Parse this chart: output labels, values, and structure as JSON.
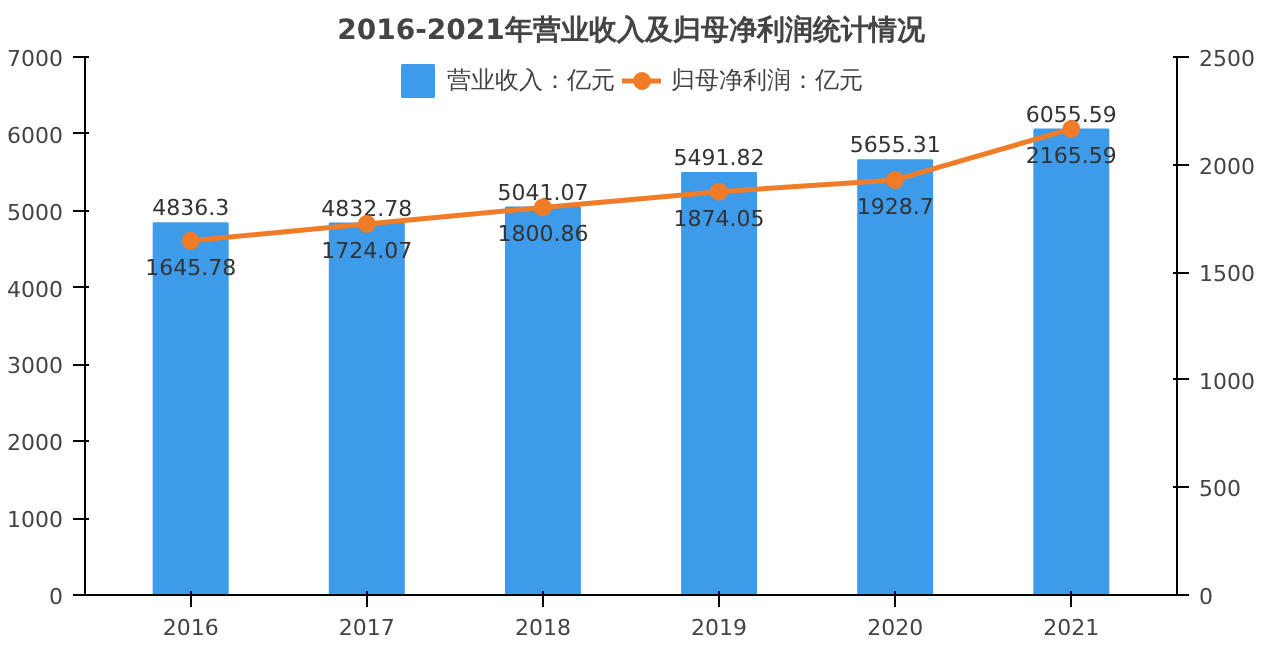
{
  "chart_data": {
    "type": "bar",
    "title": "2016-2021年营业收入及归母净利润统计情况",
    "categories": [
      "2016",
      "2017",
      "2018",
      "2019",
      "2020",
      "2021"
    ],
    "series": [
      {
        "name": "营业收入：亿元",
        "color": "#3d9be9",
        "values": [
          4836.3,
          4832.78,
          5041.07,
          5491.82,
          5655.31,
          6055.59
        ]
      },
      {
        "name": "归母净利润：亿元",
        "type": "line",
        "axis": "y2",
        "color": "#f07c28",
        "marker": "circle",
        "values": [
          1645.78,
          1724.07,
          1800.86,
          1874.05,
          1928.7,
          2165.59
        ]
      }
    ],
    "ylim": [
      0,
      7000
    ],
    "yticks": [
      0,
      1000,
      2000,
      3000,
      4000,
      5000,
      6000,
      7000
    ],
    "y2lim": [
      0,
      2500
    ],
    "y2ticks": [
      0,
      500,
      1000,
      1500,
      2000,
      2500
    ],
    "data_labels": true,
    "legend": "top",
    "grid": false
  }
}
